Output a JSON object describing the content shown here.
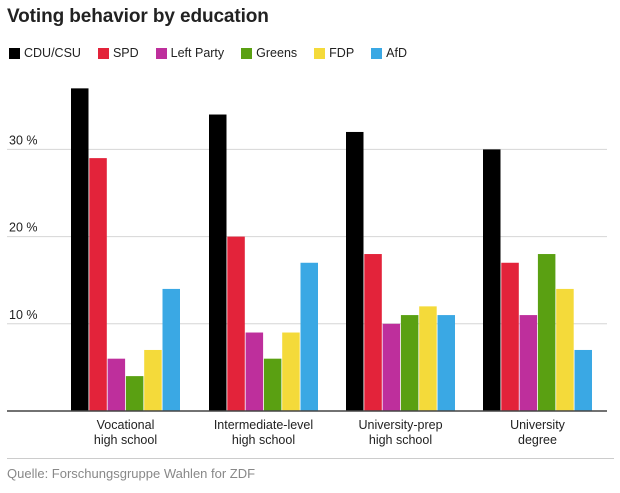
{
  "header": {
    "title": "Voting behavior by education"
  },
  "footer": {
    "source": "Quelle: Forschungsgruppe Wahlen for ZDF"
  },
  "chart_data": {
    "type": "bar",
    "title": "Voting behavior by education",
    "xlabel": "",
    "ylabel": "",
    "ylim": [
      0,
      40
    ],
    "yticks": [
      10,
      20,
      30
    ],
    "ytick_labels": [
      "10 %",
      "20 %",
      "30 %"
    ],
    "grid": true,
    "legend_position": "top-left",
    "categories": [
      [
        "Vocational",
        "high school"
      ],
      [
        "Intermediate-level",
        "high school"
      ],
      [
        "University-prep",
        "high school"
      ],
      [
        "University",
        "degree"
      ]
    ],
    "series": [
      {
        "name": "CDU/CSU",
        "color": "#000000",
        "values": [
          37,
          34,
          32,
          30
        ]
      },
      {
        "name": "SPD",
        "color": "#e3233a",
        "values": [
          29,
          20,
          18,
          17
        ]
      },
      {
        "name": "Left Party",
        "color": "#be2f9c",
        "values": [
          6,
          9,
          10,
          11
        ]
      },
      {
        "name": "Greens",
        "color": "#5aa012",
        "values": [
          4,
          6,
          11,
          18
        ]
      },
      {
        "name": "FDP",
        "color": "#f4da3a",
        "values": [
          7,
          9,
          12,
          14
        ]
      },
      {
        "name": "AfD",
        "color": "#3aa8e4",
        "values": [
          14,
          17,
          11,
          7
        ]
      }
    ]
  }
}
